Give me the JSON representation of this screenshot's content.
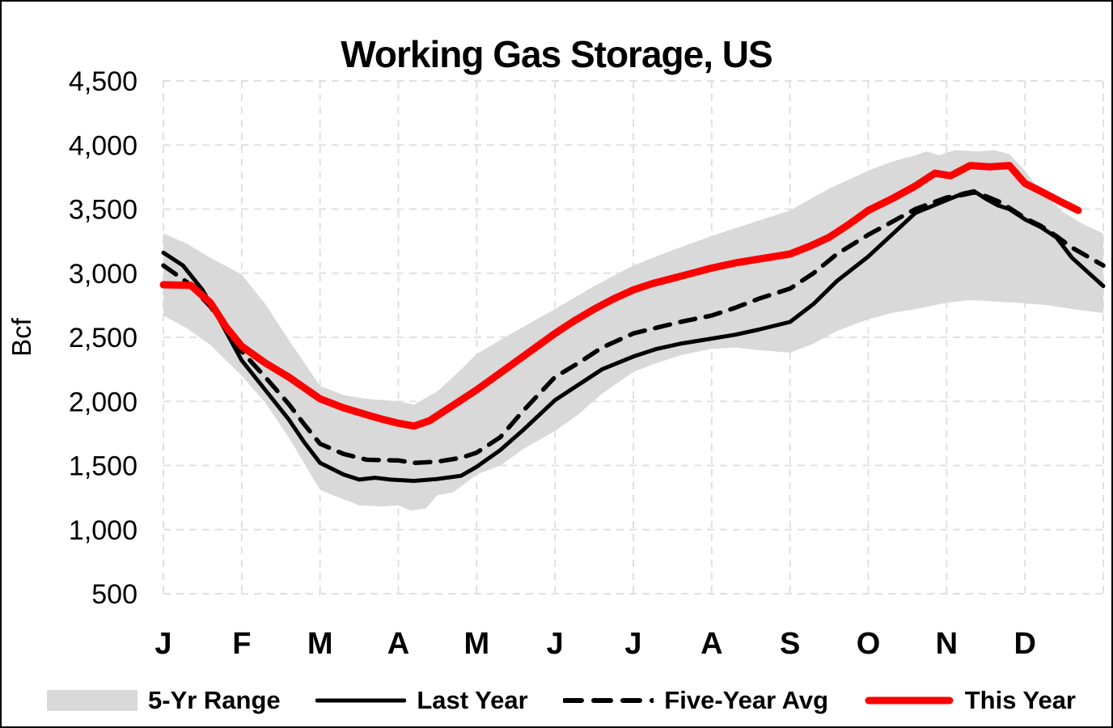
{
  "title": "Working Gas Storage, US",
  "y_axis": {
    "label": "Bcf",
    "ticks": [
      {
        "v": 500,
        "label": "500"
      },
      {
        "v": 1000,
        "label": "1,000"
      },
      {
        "v": 1500,
        "label": "1,500"
      },
      {
        "v": 2000,
        "label": "2,000"
      },
      {
        "v": 2500,
        "label": "2,500"
      },
      {
        "v": 3000,
        "label": "3,000"
      },
      {
        "v": 3500,
        "label": "3,500"
      },
      {
        "v": 4000,
        "label": "4,000"
      },
      {
        "v": 4500,
        "label": "4,500"
      }
    ]
  },
  "x_axis": {
    "months": [
      "J",
      "F",
      "M",
      "A",
      "M",
      "J",
      "J",
      "A",
      "S",
      "O",
      "N",
      "D"
    ]
  },
  "legend": [
    {
      "label": "5-Yr Range",
      "type": "band",
      "color": "#d9d9d9"
    },
    {
      "label": "Last Year",
      "type": "line",
      "color": "#000000"
    },
    {
      "label": "Five-Year Avg",
      "type": "dashed-line",
      "color": "#000000"
    },
    {
      "label": "This Year",
      "type": "thick-line",
      "color": "#ff0000"
    }
  ],
  "colors": {
    "band": "#d9d9d9",
    "gridline": "#e0e0e0",
    "last_year": "#000000",
    "five_year_avg": "#000000",
    "this_year": "#ff0000",
    "background": "#ffffff",
    "border": "#000000"
  },
  "chart_data": {
    "type": "line",
    "title": "Working Gas Storage, US",
    "xlabel": "",
    "ylabel": "Bcf",
    "ylim": [
      500,
      4500
    ],
    "y_tick_step": 500,
    "x_unit": "month position, 0 = Jan 1 .. 12 = end of Dec (weekly gas storage data)",
    "grid": true,
    "legend_position": "bottom",
    "band": {
      "name": "5-Yr Range",
      "color": "#d9d9d9",
      "top": [
        [
          0,
          3310
        ],
        [
          0.3,
          3230
        ],
        [
          0.6,
          3120
        ],
        [
          1,
          2990
        ],
        [
          1.3,
          2760
        ],
        [
          1.6,
          2480
        ],
        [
          2,
          2120
        ],
        [
          2.3,
          2050
        ],
        [
          2.6,
          2020
        ],
        [
          3,
          2000
        ],
        [
          3.2,
          1975
        ],
        [
          3.5,
          2080
        ],
        [
          3.75,
          2220
        ],
        [
          4,
          2370
        ],
        [
          4.5,
          2550
        ],
        [
          5,
          2720
        ],
        [
          5.5,
          2900
        ],
        [
          6,
          3060
        ],
        [
          6.5,
          3180
        ],
        [
          7,
          3290
        ],
        [
          7.5,
          3390
        ],
        [
          8,
          3490
        ],
        [
          8.5,
          3660
        ],
        [
          9,
          3800
        ],
        [
          9.3,
          3870
        ],
        [
          9.6,
          3920
        ],
        [
          9.74,
          3950
        ],
        [
          9.9,
          3920
        ],
        [
          10.1,
          3960
        ],
        [
          10.4,
          3950
        ],
        [
          10.6,
          3960
        ],
        [
          10.8,
          3930
        ],
        [
          11,
          3800
        ],
        [
          11.2,
          3640
        ],
        [
          11.5,
          3470
        ],
        [
          11.75,
          3380
        ],
        [
          12,
          3310
        ]
      ],
      "bottom": [
        [
          0,
          2670
        ],
        [
          0.3,
          2570
        ],
        [
          0.6,
          2440
        ],
        [
          1,
          2200
        ],
        [
          1.3,
          1990
        ],
        [
          1.6,
          1720
        ],
        [
          2,
          1310
        ],
        [
          2.2,
          1260
        ],
        [
          2.5,
          1190
        ],
        [
          2.8,
          1180
        ],
        [
          3,
          1190
        ],
        [
          3.15,
          1150
        ],
        [
          3.35,
          1165
        ],
        [
          3.5,
          1270
        ],
        [
          3.7,
          1290
        ],
        [
          4,
          1430
        ],
        [
          4.3,
          1500
        ],
        [
          4.6,
          1630
        ],
        [
          5,
          1770
        ],
        [
          5.3,
          1900
        ],
        [
          5.6,
          2060
        ],
        [
          6,
          2230
        ],
        [
          6.3,
          2300
        ],
        [
          6.6,
          2360
        ],
        [
          7,
          2410
        ],
        [
          7.3,
          2420
        ],
        [
          7.6,
          2400
        ],
        [
          8,
          2380
        ],
        [
          8.3,
          2450
        ],
        [
          8.6,
          2550
        ],
        [
          9,
          2640
        ],
        [
          9.3,
          2690
        ],
        [
          9.6,
          2720
        ],
        [
          10,
          2770
        ],
        [
          10.3,
          2790
        ],
        [
          10.6,
          2780
        ],
        [
          11,
          2765
        ],
        [
          11.3,
          2750
        ],
        [
          11.6,
          2720
        ],
        [
          12,
          2690
        ]
      ]
    },
    "series": [
      {
        "name": "Last Year",
        "color": "#000000",
        "width": 5,
        "dash": null,
        "points": [
          [
            0,
            3160
          ],
          [
            0.25,
            3060
          ],
          [
            0.5,
            2870
          ],
          [
            0.75,
            2600
          ],
          [
            1,
            2320
          ],
          [
            1.3,
            2090
          ],
          [
            1.6,
            1860
          ],
          [
            1.8,
            1680
          ],
          [
            2,
            1520
          ],
          [
            2.3,
            1430
          ],
          [
            2.5,
            1390
          ],
          [
            2.7,
            1405
          ],
          [
            2.9,
            1390
          ],
          [
            3.2,
            1380
          ],
          [
            3.5,
            1395
          ],
          [
            3.8,
            1420
          ],
          [
            4,
            1490
          ],
          [
            4.3,
            1620
          ],
          [
            4.6,
            1780
          ],
          [
            5,
            2010
          ],
          [
            5.3,
            2130
          ],
          [
            5.6,
            2250
          ],
          [
            6,
            2350
          ],
          [
            6.3,
            2410
          ],
          [
            6.6,
            2450
          ],
          [
            7,
            2490
          ],
          [
            7.3,
            2520
          ],
          [
            7.6,
            2560
          ],
          [
            8,
            2620
          ],
          [
            8.3,
            2760
          ],
          [
            8.6,
            2940
          ],
          [
            9,
            3130
          ],
          [
            9.3,
            3300
          ],
          [
            9.6,
            3470
          ],
          [
            10,
            3570
          ],
          [
            10.2,
            3620
          ],
          [
            10.35,
            3640
          ],
          [
            10.5,
            3580
          ],
          [
            10.65,
            3530
          ],
          [
            10.8,
            3500
          ],
          [
            11,
            3420
          ],
          [
            11.2,
            3360
          ],
          [
            11.4,
            3280
          ],
          [
            11.6,
            3120
          ],
          [
            11.8,
            3010
          ],
          [
            12,
            2900
          ]
        ]
      },
      {
        "name": "Five-Year Avg",
        "color": "#000000",
        "width": 5.5,
        "dash": "19 13",
        "points": [
          [
            0,
            3060
          ],
          [
            0.3,
            2930
          ],
          [
            0.6,
            2740
          ],
          [
            0.8,
            2570
          ],
          [
            1,
            2390
          ],
          [
            1.3,
            2190
          ],
          [
            1.6,
            1980
          ],
          [
            1.8,
            1820
          ],
          [
            2,
            1670
          ],
          [
            2.3,
            1590
          ],
          [
            2.6,
            1545
          ],
          [
            3,
            1540
          ],
          [
            3.2,
            1520
          ],
          [
            3.5,
            1530
          ],
          [
            3.8,
            1560
          ],
          [
            4,
            1600
          ],
          [
            4.3,
            1720
          ],
          [
            4.6,
            1930
          ],
          [
            5,
            2190
          ],
          [
            5.3,
            2300
          ],
          [
            5.6,
            2420
          ],
          [
            6,
            2530
          ],
          [
            6.3,
            2575
          ],
          [
            6.6,
            2620
          ],
          [
            7,
            2670
          ],
          [
            7.3,
            2730
          ],
          [
            7.6,
            2800
          ],
          [
            8,
            2880
          ],
          [
            8.3,
            3000
          ],
          [
            8.6,
            3150
          ],
          [
            9,
            3300
          ],
          [
            9.3,
            3400
          ],
          [
            9.6,
            3500
          ],
          [
            10,
            3590
          ],
          [
            10.2,
            3610
          ],
          [
            10.35,
            3630
          ],
          [
            10.5,
            3600
          ],
          [
            10.7,
            3550
          ],
          [
            11,
            3430
          ],
          [
            11.2,
            3370
          ],
          [
            11.4,
            3290
          ],
          [
            11.6,
            3200
          ],
          [
            11.8,
            3130
          ],
          [
            12,
            3060
          ]
        ]
      },
      {
        "name": "This Year",
        "color": "#ff0000",
        "width": 9,
        "dash": null,
        "points": [
          [
            0,
            2910
          ],
          [
            0.35,
            2905
          ],
          [
            0.6,
            2770
          ],
          [
            0.8,
            2580
          ],
          [
            1,
            2430
          ],
          [
            1.3,
            2300
          ],
          [
            1.6,
            2190
          ],
          [
            2,
            2020
          ],
          [
            2.3,
            1950
          ],
          [
            2.6,
            1895
          ],
          [
            2.8,
            1860
          ],
          [
            3,
            1830
          ],
          [
            3.2,
            1808
          ],
          [
            3.4,
            1850
          ],
          [
            3.6,
            1930
          ],
          [
            3.8,
            2010
          ],
          [
            4,
            2090
          ],
          [
            4.25,
            2200
          ],
          [
            4.5,
            2310
          ],
          [
            4.75,
            2420
          ],
          [
            5,
            2530
          ],
          [
            5.25,
            2630
          ],
          [
            5.5,
            2720
          ],
          [
            5.75,
            2800
          ],
          [
            6,
            2870
          ],
          [
            6.25,
            2920
          ],
          [
            6.5,
            2960
          ],
          [
            6.75,
            3000
          ],
          [
            7,
            3040
          ],
          [
            7.3,
            3080
          ],
          [
            7.6,
            3110
          ],
          [
            8,
            3150
          ],
          [
            8.25,
            3210
          ],
          [
            8.5,
            3280
          ],
          [
            8.75,
            3380
          ],
          [
            9,
            3490
          ],
          [
            9.3,
            3580
          ],
          [
            9.6,
            3680
          ],
          [
            9.85,
            3780
          ],
          [
            10.05,
            3760
          ],
          [
            10.3,
            3840
          ],
          [
            10.55,
            3830
          ],
          [
            10.8,
            3840
          ],
          [
            11,
            3700
          ],
          [
            11.2,
            3640
          ],
          [
            11.45,
            3560
          ],
          [
            11.68,
            3490
          ]
        ]
      }
    ]
  }
}
